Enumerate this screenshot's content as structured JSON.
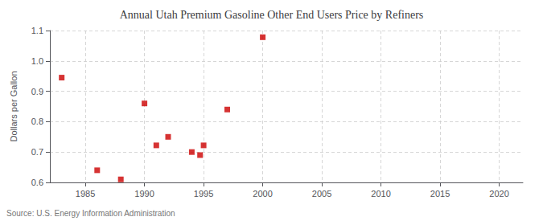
{
  "chart_data": {
    "type": "scatter",
    "title": "Annual Utah Premium Gasoline Other End Users Price by Refiners",
    "ylabel": "Dollars per Gallon",
    "annotation": "Source: U.S. Energy Information Administration",
    "x": [
      1983,
      1986,
      1988,
      1990,
      1991,
      1992,
      1994,
      1994.7,
      1995,
      1997,
      2000
    ],
    "values": [
      0.945,
      0.64,
      0.61,
      0.86,
      0.722,
      0.75,
      0.7,
      0.69,
      0.722,
      0.84,
      1.078
    ],
    "color": "#cc0000",
    "marker": "square",
    "xlim": [
      1982,
      2022
    ],
    "ylim": [
      0.6,
      1.1
    ],
    "xticks": [
      1985,
      1990,
      1995,
      2000,
      2005,
      2010,
      2015,
      2020
    ],
    "yticks": [
      0.6,
      0.7,
      0.8,
      0.9,
      {
        "value": 1.0,
        "label": "1.0"
      },
      1.1
    ],
    "grid": true
  }
}
